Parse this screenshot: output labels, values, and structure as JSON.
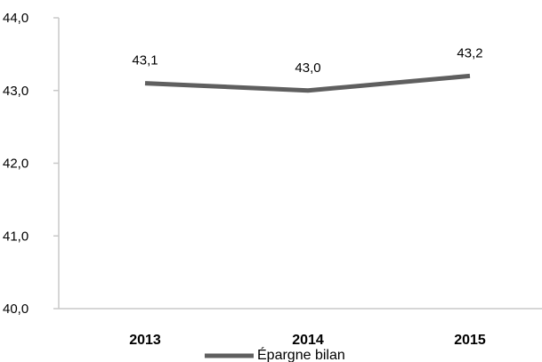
{
  "chart_data": {
    "type": "line",
    "categories": [
      "2013",
      "2014",
      "2015"
    ],
    "series": [
      {
        "name": "Épargne bilan",
        "values": [
          43.1,
          43.0,
          43.2
        ]
      }
    ],
    "data_labels": [
      "43,1",
      "43,0",
      "43,2"
    ],
    "y_ticks": [
      40.0,
      41.0,
      42.0,
      43.0,
      44.0
    ],
    "y_tick_labels": [
      "40,0",
      "41,0",
      "42,0",
      "43,0",
      "44,0"
    ],
    "ylim": [
      40.0,
      44.0
    ],
    "grid": false,
    "legend_position": "bottom",
    "series_color": "#5f5f5f",
    "axis_color": "#c8c8c8"
  }
}
